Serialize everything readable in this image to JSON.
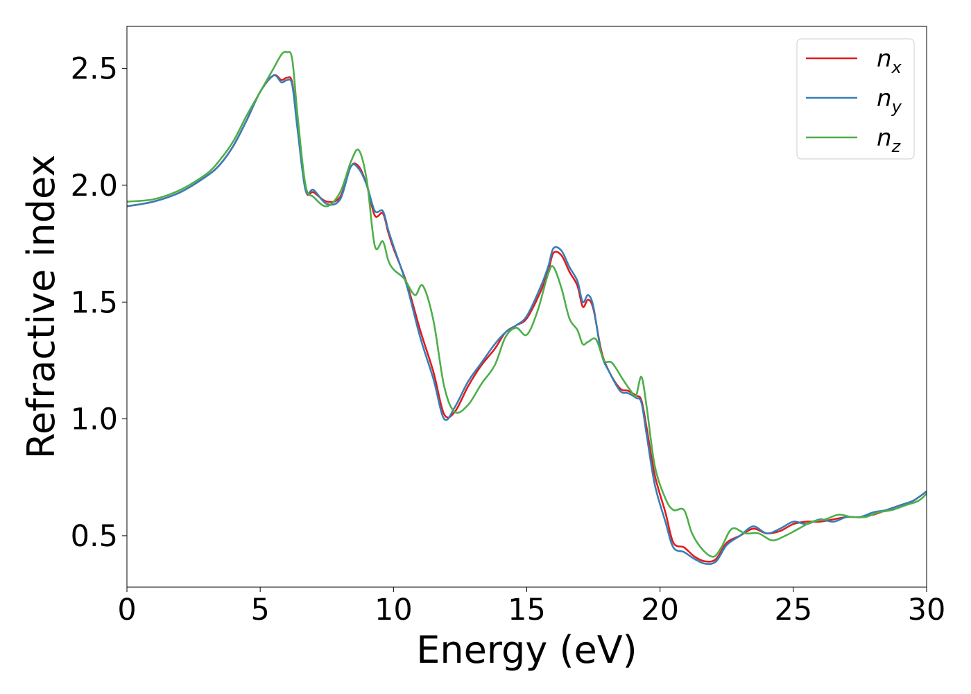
{
  "chart_data": {
    "type": "line",
    "title": "",
    "xlabel": "Energy (eV)",
    "ylabel": "Refractive index",
    "xlim": [
      0,
      30
    ],
    "ylim": [
      0.28,
      2.68
    ],
    "xticks": [
      0,
      5,
      10,
      15,
      20,
      25,
      30
    ],
    "xtick_labels": [
      "0",
      "5",
      "10",
      "15",
      "20",
      "25",
      "30"
    ],
    "yticks": [
      0.5,
      1.0,
      1.5,
      2.0,
      2.5
    ],
    "ytick_labels": [
      "0.5",
      "1.0",
      "1.5",
      "2.0",
      "2.5"
    ],
    "grid": false,
    "legend_position": "top-right",
    "series": [
      {
        "name": "n",
        "subscript": "x",
        "color": "#e41a1c",
        "x": [
          0,
          1,
          2,
          3,
          3.5,
          4,
          4.5,
          5,
          5.5,
          5.8,
          6.0,
          6.2,
          6.4,
          6.7,
          7.0,
          7.5,
          8.0,
          8.4,
          8.7,
          9.0,
          9.3,
          9.6,
          9.8,
          10.0,
          10.5,
          11.0,
          11.5,
          11.9,
          12.3,
          12.8,
          13.3,
          13.8,
          14.2,
          14.6,
          15.0,
          15.5,
          15.8,
          16.0,
          16.3,
          16.6,
          16.9,
          17.1,
          17.3,
          17.5,
          17.8,
          18.1,
          18.5,
          18.8,
          19.1,
          19.3,
          19.5,
          19.8,
          20.2,
          20.5,
          20.9,
          21.3,
          21.7,
          22.1,
          22.5,
          23.0,
          23.5,
          24.0,
          24.5,
          25.0,
          25.5,
          26.0,
          26.5,
          27.0,
          27.5,
          28.0,
          28.5,
          29.0,
          29.5,
          30.0
        ],
        "y": [
          1.91,
          1.93,
          1.97,
          2.04,
          2.09,
          2.17,
          2.28,
          2.4,
          2.47,
          2.45,
          2.46,
          2.44,
          2.25,
          1.98,
          1.97,
          1.93,
          1.95,
          2.08,
          2.08,
          2.0,
          1.87,
          1.88,
          1.8,
          1.73,
          1.58,
          1.38,
          1.2,
          1.02,
          1.03,
          1.14,
          1.23,
          1.3,
          1.37,
          1.4,
          1.43,
          1.54,
          1.63,
          1.71,
          1.7,
          1.63,
          1.57,
          1.48,
          1.51,
          1.47,
          1.29,
          1.2,
          1.13,
          1.12,
          1.1,
          1.08,
          0.96,
          0.76,
          0.6,
          0.47,
          0.45,
          0.41,
          0.39,
          0.4,
          0.47,
          0.5,
          0.53,
          0.51,
          0.52,
          0.55,
          0.56,
          0.56,
          0.57,
          0.58,
          0.58,
          0.59,
          0.61,
          0.63,
          0.65,
          0.69
        ]
      },
      {
        "name": "n",
        "subscript": "y",
        "color": "#377eb8",
        "x": [
          0,
          1,
          2,
          3,
          3.5,
          4,
          4.5,
          5,
          5.5,
          5.8,
          6.0,
          6.2,
          6.4,
          6.7,
          7.0,
          7.5,
          8.0,
          8.4,
          8.7,
          9.0,
          9.3,
          9.6,
          9.8,
          10.0,
          10.5,
          11.0,
          11.5,
          11.9,
          12.3,
          12.8,
          13.3,
          13.8,
          14.2,
          14.6,
          15.0,
          15.5,
          15.8,
          16.0,
          16.3,
          16.6,
          16.9,
          17.1,
          17.3,
          17.5,
          17.8,
          18.1,
          18.5,
          18.8,
          19.1,
          19.3,
          19.5,
          19.8,
          20.2,
          20.5,
          20.9,
          21.3,
          21.7,
          22.1,
          22.5,
          23.0,
          23.5,
          24.0,
          24.5,
          25.0,
          25.5,
          26.0,
          26.5,
          27.0,
          27.5,
          28.0,
          28.5,
          29.0,
          29.5,
          30.0
        ],
        "y": [
          1.91,
          1.93,
          1.97,
          2.04,
          2.09,
          2.17,
          2.28,
          2.4,
          2.47,
          2.44,
          2.45,
          2.43,
          2.24,
          1.98,
          1.98,
          1.92,
          1.94,
          2.08,
          2.07,
          2.0,
          1.89,
          1.89,
          1.81,
          1.74,
          1.57,
          1.35,
          1.17,
          1.0,
          1.05,
          1.16,
          1.24,
          1.32,
          1.37,
          1.4,
          1.44,
          1.56,
          1.65,
          1.73,
          1.72,
          1.65,
          1.59,
          1.5,
          1.53,
          1.48,
          1.28,
          1.2,
          1.12,
          1.11,
          1.09,
          1.07,
          0.93,
          0.72,
          0.56,
          0.45,
          0.43,
          0.4,
          0.38,
          0.39,
          0.46,
          0.5,
          0.54,
          0.51,
          0.53,
          0.56,
          0.55,
          0.57,
          0.56,
          0.58,
          0.58,
          0.6,
          0.61,
          0.63,
          0.65,
          0.69
        ]
      },
      {
        "name": "n",
        "subscript": "z",
        "color": "#4daf4a",
        "x": [
          0,
          1,
          2,
          3,
          3.5,
          4,
          4.5,
          5,
          5.5,
          5.8,
          6.0,
          6.2,
          6.4,
          6.7,
          7.0,
          7.5,
          8.0,
          8.4,
          8.7,
          9.0,
          9.3,
          9.6,
          9.8,
          10.0,
          10.4,
          10.8,
          11.1,
          11.5,
          11.9,
          12.3,
          12.8,
          13.3,
          13.8,
          14.2,
          14.6,
          15.0,
          15.4,
          15.8,
          16.0,
          16.3,
          16.6,
          16.9,
          17.1,
          17.3,
          17.6,
          17.9,
          18.2,
          18.6,
          18.9,
          19.1,
          19.3,
          19.5,
          19.8,
          20.2,
          20.5,
          20.9,
          21.2,
          21.6,
          22.0,
          22.3,
          22.7,
          23.2,
          23.7,
          24.2,
          24.7,
          25.2,
          25.7,
          26.2,
          26.7,
          27.2,
          27.7,
          28.2,
          28.7,
          29.2,
          29.7,
          30.0
        ],
        "y": [
          1.93,
          1.94,
          1.98,
          2.05,
          2.11,
          2.19,
          2.3,
          2.4,
          2.5,
          2.56,
          2.57,
          2.54,
          2.3,
          2.0,
          1.95,
          1.91,
          1.97,
          2.1,
          2.15,
          2.02,
          1.74,
          1.76,
          1.68,
          1.64,
          1.6,
          1.53,
          1.57,
          1.42,
          1.14,
          1.03,
          1.06,
          1.15,
          1.23,
          1.35,
          1.39,
          1.36,
          1.46,
          1.62,
          1.65,
          1.56,
          1.43,
          1.38,
          1.32,
          1.33,
          1.34,
          1.25,
          1.24,
          1.17,
          1.12,
          1.1,
          1.18,
          1.05,
          0.8,
          0.66,
          0.61,
          0.61,
          0.51,
          0.44,
          0.41,
          0.45,
          0.53,
          0.51,
          0.51,
          0.48,
          0.5,
          0.53,
          0.56,
          0.57,
          0.59,
          0.58,
          0.58,
          0.6,
          0.61,
          0.63,
          0.65,
          0.68
        ]
      }
    ]
  }
}
